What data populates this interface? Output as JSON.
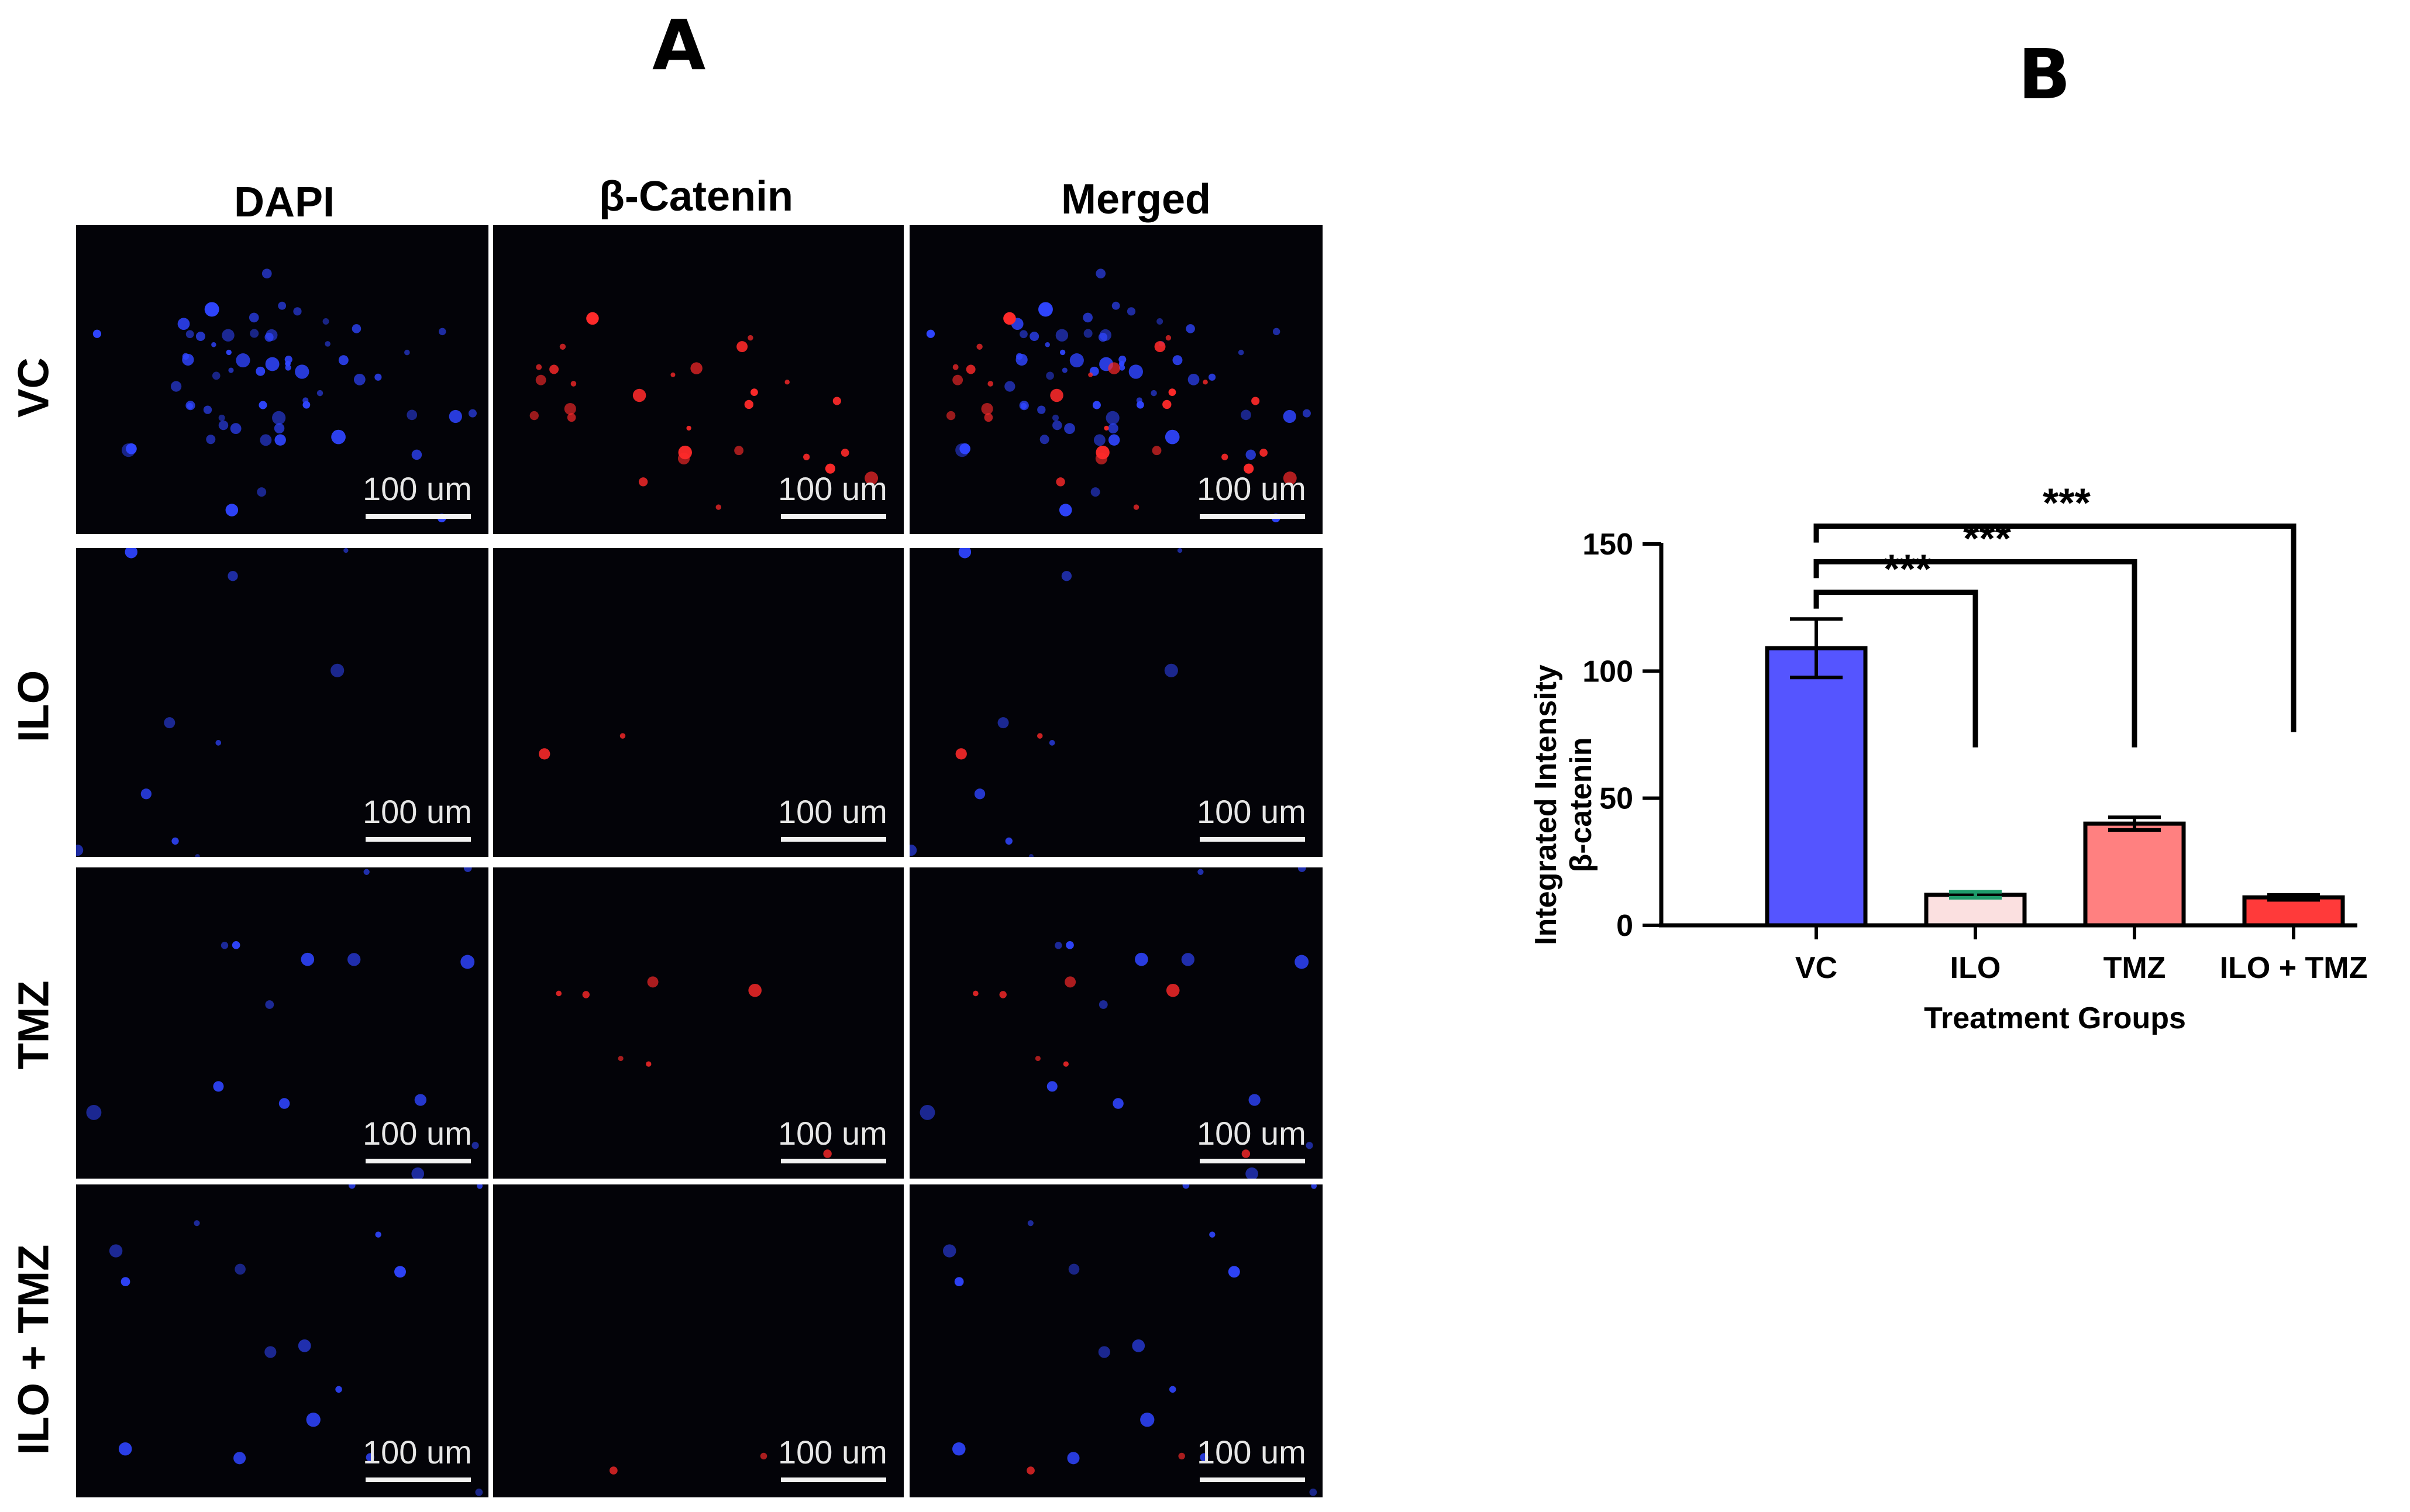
{
  "panel_a": {
    "label": "A",
    "column_headers": [
      "DAPI",
      "β-Catenin",
      "Merged"
    ],
    "row_labels": [
      "VC",
      "ILO",
      "TMZ",
      "ILO + TMZ"
    ],
    "scale_bar_label": "100 um",
    "channel_colors": {
      "dapi": "#2f45ff",
      "catenin": "#ff2a2a"
    }
  },
  "panel_b": {
    "label": "B"
  },
  "chart_data": {
    "type": "bar",
    "title": "",
    "xlabel": "Treatment Groups",
    "ylabel": "Integrated Intensity β-catenin",
    "ylabel_lines": [
      "Integrated Intensity",
      "β-catenin"
    ],
    "categories": [
      "VC",
      "ILO",
      "TMZ",
      "ILO + TMZ"
    ],
    "values": [
      109,
      12,
      40,
      11
    ],
    "error": [
      11.5,
      1.2,
      2.5,
      1.0
    ],
    "colors": [
      "#5555ff",
      "#fbe0e0",
      "#ff8080",
      "#ff3a3a"
    ],
    "ylim": [
      0,
      150
    ],
    "yticks": [
      0,
      50,
      100,
      150
    ],
    "grid": false,
    "significance": [
      {
        "from": "VC",
        "to": "ILO",
        "label": "***",
        "line_y": 131,
        "drop_to_y": 70
      },
      {
        "from": "VC",
        "to": "TMZ",
        "label": "***",
        "line_y": 143,
        "drop_to_y": 70
      },
      {
        "from": "VC",
        "to": "ILO + TMZ",
        "label": "***",
        "line_y": 157,
        "drop_to_y": 76
      }
    ]
  }
}
